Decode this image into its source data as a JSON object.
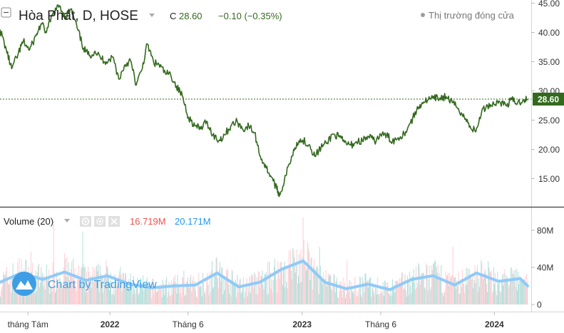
{
  "header": {
    "symbol_title": "Hòa Phát, D, HOSE",
    "close_prefix": "C",
    "close_value": "28.60",
    "change": "−0.10 (−0.35%)",
    "market_status": "Thị trường đóng cửa",
    "last_price_tag": "28.60"
  },
  "volume_pane": {
    "title": "Volume (20)",
    "value_volume": "16.719M",
    "value_ma": "20.171M",
    "y_ticks": [
      "80M",
      "40M",
      "0"
    ]
  },
  "watermark": {
    "text": "Chart by TradingView"
  },
  "colors": {
    "price_line": "#33691e",
    "price_tag_bg": "#33691e",
    "header_change": "#33691e",
    "vol_value": "#ef5350",
    "ma_value": "#2196f3",
    "vol_up": "#b2dfdb",
    "vol_down": "#ffcdd2",
    "ma_line": "#90caf9",
    "axis_text": "#333333",
    "separator": "#555555"
  },
  "chart_data": [
    {
      "type": "line",
      "title": "Hòa Phát, D, HOSE",
      "xlabel": "",
      "ylabel": "",
      "ylim": [
        10,
        45
      ],
      "y_ticks": [
        15,
        20,
        25,
        30,
        35,
        40,
        45
      ],
      "x_tick_labels": [
        "tháng Tám",
        "2022",
        "Tháng 6",
        "2023",
        "Tháng 6",
        "2024"
      ],
      "x_tick_dates": [
        "2021-08-02",
        "2022-01-04",
        "2022-06-01",
        "2023-01-03",
        "2023-06-01",
        "2024-01-02"
      ],
      "last_price": 28.6,
      "grid": false,
      "legend": "none",
      "series": [
        {
          "name": "",
          "x": [
            "2021-06-10",
            "2021-06-22",
            "2021-07-02",
            "2021-07-14",
            "2021-07-24",
            "2021-08-05",
            "2021-08-17",
            "2021-08-27",
            "2021-09-06",
            "2021-09-18",
            "2021-10-01",
            "2021-10-12",
            "2021-10-22",
            "2021-11-03",
            "2021-11-15",
            "2021-11-26",
            "2021-12-07",
            "2021-12-17",
            "2021-12-28",
            "2022-01-10",
            "2022-01-21",
            "2022-02-02",
            "2022-02-12",
            "2022-02-23",
            "2022-03-05",
            "2022-03-16",
            "2022-03-28",
            "2022-04-07",
            "2022-04-19",
            "2022-04-29",
            "2022-05-10",
            "2022-05-21",
            "2022-06-02",
            "2022-06-14",
            "2022-06-25",
            "2022-07-06",
            "2022-07-18",
            "2022-07-29",
            "2022-08-09",
            "2022-08-21",
            "2022-09-02",
            "2022-09-13",
            "2022-09-24",
            "2022-10-05",
            "2022-10-16",
            "2022-10-27",
            "2022-11-07",
            "2022-11-16",
            "2022-11-22",
            "2022-12-03",
            "2022-12-14",
            "2022-12-24",
            "2023-01-04",
            "2023-01-17",
            "2023-01-27",
            "2023-02-08",
            "2023-02-18",
            "2023-03-02",
            "2023-03-13",
            "2023-03-24",
            "2023-04-05",
            "2023-04-16",
            "2023-04-27",
            "2023-05-09",
            "2023-05-20",
            "2023-06-01",
            "2023-06-12",
            "2023-06-23",
            "2023-07-04",
            "2023-07-15",
            "2023-07-27",
            "2023-08-08",
            "2023-08-18",
            "2023-08-30",
            "2023-09-10",
            "2023-09-21",
            "2023-10-03",
            "2023-10-14",
            "2023-10-26",
            "2023-11-06",
            "2023-11-17",
            "2023-11-28",
            "2023-12-09",
            "2023-12-20",
            "2024-01-01",
            "2024-01-12",
            "2024-01-24",
            "2024-02-04",
            "2024-02-15",
            "2024-02-26",
            "2024-03-05"
          ],
          "values": [
            40.5,
            37.0,
            33.8,
            36.2,
            38.5,
            37.0,
            39.4,
            41.5,
            40.0,
            43.2,
            44.6,
            42.5,
            44.0,
            40.8,
            37.3,
            36.0,
            36.8,
            35.7,
            35.0,
            35.8,
            32.0,
            34.5,
            35.2,
            31.0,
            33.5,
            38.0,
            34.8,
            34.5,
            33.0,
            32.8,
            30.8,
            29.2,
            25.5,
            24.0,
            23.5,
            24.8,
            22.5,
            21.5,
            22.5,
            24.0,
            24.8,
            23.4,
            24.0,
            22.8,
            18.8,
            16.8,
            15.2,
            13.2,
            12.2,
            15.5,
            18.8,
            21.2,
            21.6,
            20.8,
            18.8,
            20.4,
            21.0,
            22.6,
            22.2,
            21.2,
            20.7,
            21.3,
            21.5,
            22.2,
            21.4,
            22.5,
            22.4,
            21.4,
            22.0,
            22.7,
            24.5,
            26.7,
            28.0,
            28.5,
            28.7,
            28.8,
            29.0,
            28.0,
            27.0,
            25.5,
            24.0,
            23.0,
            26.5,
            27.5,
            27.8,
            28.2,
            27.5,
            28.5,
            27.9,
            28.5,
            28.6
          ]
        }
      ]
    },
    {
      "type": "bar",
      "title": "Volume (20)",
      "ylim": [
        0,
        100
      ],
      "y_unit": "M",
      "y_ticks": [
        0,
        40,
        80
      ],
      "series": [
        {
          "name": "Volume",
          "last_value": 16.719
        },
        {
          "name": "MA 20",
          "last_value": 20.171,
          "x": [
            "2021-06-10",
            "2021-07-20",
            "2021-08-30",
            "2021-10-10",
            "2021-11-20",
            "2021-12-30",
            "2022-02-10",
            "2022-03-25",
            "2022-05-05",
            "2022-06-15",
            "2022-07-26",
            "2022-09-05",
            "2022-10-15",
            "2022-11-25",
            "2023-01-05",
            "2023-02-15",
            "2023-03-28",
            "2023-05-08",
            "2023-06-18",
            "2023-07-29",
            "2023-09-08",
            "2023-10-19",
            "2023-11-29",
            "2024-01-10",
            "2024-02-20",
            "2024-03-05"
          ],
          "values": [
            24,
            34,
            27,
            35,
            26,
            31,
            22,
            18,
            20,
            21,
            34,
            19,
            24,
            38,
            47,
            24,
            17,
            22,
            16,
            27,
            31,
            21,
            34,
            25,
            28,
            20
          ]
        }
      ]
    }
  ]
}
